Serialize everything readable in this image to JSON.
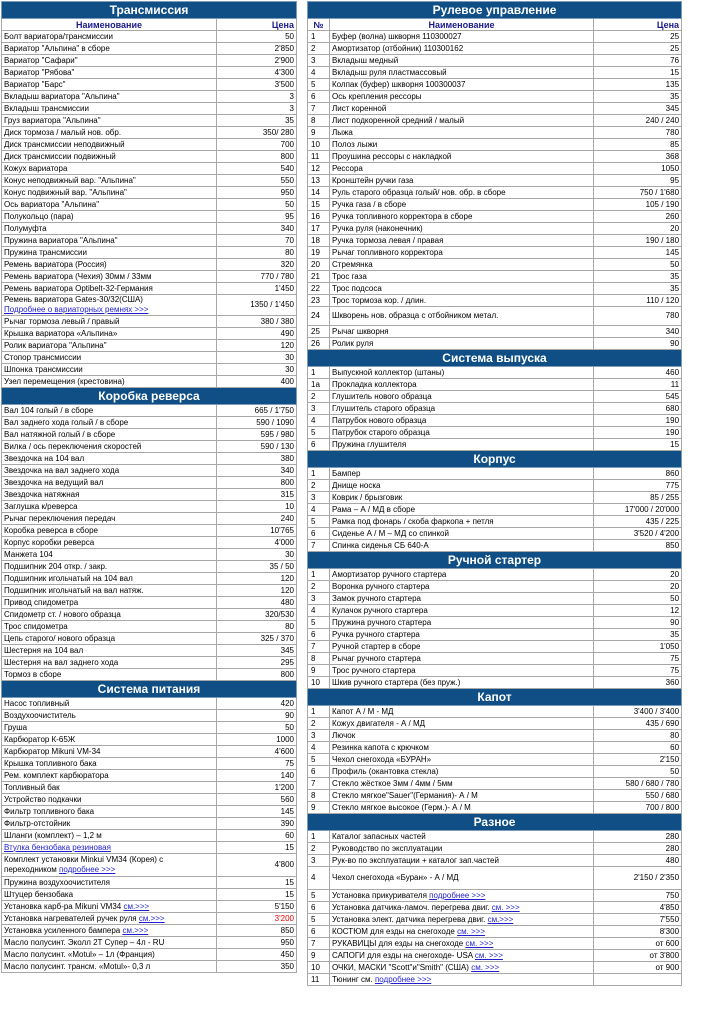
{
  "left_sections": [
    {
      "title": "Трансмиссия",
      "header": {
        "name": "Наименование",
        "price": "Цена"
      },
      "rows": [
        {
          "name": "Болт вариатора/трансмиссии",
          "price": "50"
        },
        {
          "name": "Вариатор \"Альпина\" в сборе",
          "price": "2'850"
        },
        {
          "name": "Вариатор \"Сафари\"",
          "price": "2'900"
        },
        {
          "name": "Вариатор \"Рябова\"",
          "price": "4'300"
        },
        {
          "name": "Вариатор   \"Барс\"",
          "price": "3'500"
        },
        {
          "name": "Вкладыш вариатора \"Альпина\"",
          "price": "3"
        },
        {
          "name": "Вкладыш трансмиссии",
          "price": "3"
        },
        {
          "name": "Груз вариатора \"Альпина\"",
          "price": "35"
        },
        {
          "name": "Диск тормоза / малый нов. обр.",
          "price": "350/ 280"
        },
        {
          "name": "Диск трансмиссии неподвижный",
          "price": "700"
        },
        {
          "name": "Диск трансмиссии подвижный",
          "price": "800"
        },
        {
          "name": "Кожух вариатора",
          "price": "540"
        },
        {
          "name": "Конус неподвижный вар. \"Альпина\"",
          "price": "550"
        },
        {
          "name": "Конус подвижный вар. \"Альпина\"",
          "price": "950"
        },
        {
          "name": "Ось вариатора \"Альпина\"",
          "price": "50"
        },
        {
          "name": "Полукольцо (пара)",
          "price": "95"
        },
        {
          "name": "Полумуфта",
          "price": "340"
        },
        {
          "name": "Пружина вариатора \"Альпина\"",
          "price": "70"
        },
        {
          "name": "Пружина трансмиссии",
          "price": "80"
        },
        {
          "name": "Ремень вариатора (Россия)",
          "price": "320"
        },
        {
          "name": "Ремень вариатора (Чехия) 30мм / 33мм",
          "price": "770 / 780"
        },
        {
          "name": "Ремень вариатора Optibelt-32-Германия",
          "price": "1'450"
        },
        {
          "name": "Ремень вариатора Gates-30/32(США)",
          "link": "Подробнее о вариаторных ремнях >>>",
          "price": "1350 / 1'450",
          "tall": true
        },
        {
          "name": "Рычаг тормоза  левый / правый",
          "price": "380 / 380"
        },
        {
          "name": "Крышка вариатора  «Альпина»",
          "price": "490"
        },
        {
          "name": "Ролик вариатора \"Альпина\"",
          "price": "120"
        },
        {
          "name": "Стопор трансмиссии",
          "price": "30"
        },
        {
          "name": "Шпонка трансмиссии",
          "price": "30"
        },
        {
          "name": "Узел перемещения (крестовина)",
          "price": "400"
        }
      ]
    },
    {
      "title": "Коробка реверса",
      "rows": [
        {
          "name": "Вал 104 голый / в сборе",
          "price": "665 / 1'750"
        },
        {
          "name": "Вал заднего хода голый / в сборе",
          "price": "590 / 1090"
        },
        {
          "name": "Вал натяжной голый / в сборе",
          "price": "595 / 980"
        },
        {
          "name": "Вилка / ось переключения скоростей",
          "price": "590 / 130"
        },
        {
          "name": "Звездочка на 104 вал",
          "price": "380"
        },
        {
          "name": "Звездочка на вал заднего хода",
          "price": "340"
        },
        {
          "name": "Звездочка на ведущий вал",
          "price": "800"
        },
        {
          "name": "Звездочка натяжная",
          "price": "315"
        },
        {
          "name": "Заглушка к/реверса",
          "price": "10"
        },
        {
          "name": "Рычаг переключения передач",
          "price": "240"
        },
        {
          "name": "Коробка реверса в сборе",
          "price": "10'765"
        },
        {
          "name": "Корпус коробки реверса",
          "price": "4'000"
        },
        {
          "name": "Манжета 104",
          "price": "30"
        },
        {
          "name": "Подшипник 204 откр. / закр.",
          "price": "35 / 50"
        },
        {
          "name": "Подшипник игольчатый на 104 вал",
          "price": "120"
        },
        {
          "name": "Подшипник игольчатый на вал натяж.",
          "price": "120"
        },
        {
          "name": "Привод спидометра",
          "price": "480"
        },
        {
          "name": "Спидометр ст. / нового образца",
          "price": "320/530"
        },
        {
          "name": "Трос спидометра",
          "price": "80"
        },
        {
          "name": "Цепь старого/ нового образца",
          "price": "325 / 370"
        },
        {
          "name": "Шестерня на 104 вал",
          "price": "345"
        },
        {
          "name": "Шестерня на вал заднего хода",
          "price": "295"
        },
        {
          "name": "Тормоз в сборе",
          "price": "800"
        }
      ]
    },
    {
      "title": "Система питания",
      "rows": [
        {
          "name": "Насос топливный",
          "price": "420"
        },
        {
          "name": "Воздухоочиститель",
          "price": "90"
        },
        {
          "name": "Груша",
          "price": "50"
        },
        {
          "name": "Карбюратор К-65Ж",
          "price": "1000"
        },
        {
          "name": "Карбюратор Mikuni VM-34",
          "price": "4'600"
        },
        {
          "name": "Крышка топливного бака",
          "price": "75"
        },
        {
          "name": "Рем. комплект карбюратора",
          "price": "140"
        },
        {
          "name": "Топливный бак",
          "price": "1'200"
        },
        {
          "name": "Устройство подкачки",
          "price": "560"
        },
        {
          "name": "Фильтр топливного бака",
          "price": "145"
        },
        {
          "name": "Фильтр-отстойник",
          "price": "390"
        },
        {
          "name": "Шланги (комплект) – 1,2 м",
          "price": "60"
        },
        {
          "name": "",
          "link": "Втулка бензобака резиновая",
          "price": "15"
        },
        {
          "name": "Комплект установки Minkui VM34 (Корея) с переходником",
          "link": "подробнее >>>",
          "price": "4'800",
          "big": true
        },
        {
          "name": "Пружина воздухоочистителя",
          "price": "15"
        },
        {
          "name": "Штуцер бензобака",
          "price": "15"
        },
        {
          "name": "Установка карб-ра  Mikuni VM34",
          "link": "см.>>>",
          "price": "5'150"
        },
        {
          "name": "Установка нагревателей ручек руля",
          "link": "см.>>>",
          "price": "3'200",
          "red": true
        },
        {
          "name": "Установка усиленного бампера",
          "link": "см.>>>",
          "price": "850"
        },
        {
          "name": "Масло полусинт. Эколл 2Т Супер – 4л - RU",
          "price": "950"
        },
        {
          "name": "Масло полусинт. «Motul» – 1л (Франция)",
          "price": "450"
        },
        {
          "name": "Масло полусинт. трансм. «Motul»- 0,3 л",
          "price": "350"
        }
      ]
    }
  ],
  "right_sections": [
    {
      "title": "Рулевое управление",
      "header": {
        "num": "№",
        "name": "Наименование",
        "price": "Цена"
      },
      "rows": [
        {
          "num": "1",
          "name": "Буфер (волна) шкворня 110300027",
          "price": "25"
        },
        {
          "num": "2",
          "name": "Амортизатор (отбойник) 110300162",
          "price": "25"
        },
        {
          "num": "3",
          "name": "Вкладыш медный",
          "price": "76"
        },
        {
          "num": "4",
          "name": "Вкладыш руля пластмассовый",
          "price": "15"
        },
        {
          "num": "5",
          "name": "Колпак (буфер) шкворня 100300037",
          "price": "135"
        },
        {
          "num": "6",
          "name": "Ось крепления рессоры",
          "price": "35"
        },
        {
          "num": "7",
          "name": "Лист коренной",
          "price": "345"
        },
        {
          "num": "8",
          "name": "Лист подкоренной средний / малый",
          "price": "240 / 240"
        },
        {
          "num": "9",
          "name": "Лыжа",
          "price": "780"
        },
        {
          "num": "10",
          "name": "Полоз лыжи",
          "price": "85"
        },
        {
          "num": "11",
          "name": "Проушина рессоры с накладкой",
          "price": "368"
        },
        {
          "num": "12",
          "name": "Рессора",
          "price": "1050"
        },
        {
          "num": "13",
          "name": "Кронштейн ручки газа",
          "price": "95"
        },
        {
          "num": "14",
          "name": "Руль старого образца голый/ нов. обр. в сборе",
          "price": "750 / 1'680"
        },
        {
          "num": "15",
          "name": "Ручка газа / в сборе",
          "price": "105 / 190"
        },
        {
          "num": "16",
          "name": "Ручка топливного  корректора в сборе",
          "price": "260"
        },
        {
          "num": "17",
          "name": "Ручка руля (наконечник)",
          "price": "20"
        },
        {
          "num": "18",
          "name": "Ручка тормоза  левая / правая",
          "price": "190 / 180"
        },
        {
          "num": "19",
          "name": "Рычаг топливного  корректора",
          "price": "145"
        },
        {
          "num": "20",
          "name": "Стремянка",
          "price": "50"
        },
        {
          "num": "21",
          "name": "Трос газа",
          "price": "35"
        },
        {
          "num": "22",
          "name": "Трос подсоса",
          "price": "35"
        },
        {
          "num": "23",
          "name": "Трос тормоза кор. / длин.",
          "price": "110 / 120"
        },
        {
          "num": "24",
          "name": "Шкворень нов. образца с отбойником метал.",
          "price": "780",
          "tall": true
        },
        {
          "num": "25",
          "name": "Рычаг шкворня",
          "price": "340"
        },
        {
          "num": "26",
          "name": "Ролик руля",
          "price": "90"
        }
      ]
    },
    {
      "title": "Система выпуска",
      "rows": [
        {
          "num": "1",
          "name": "Выпускной коллектор (штаны)",
          "price": "460"
        },
        {
          "num": "1а",
          "name": "Прокладка коллектора",
          "price": "11"
        },
        {
          "num": "2",
          "name": "Глушитель нового образца",
          "price": "545"
        },
        {
          "num": "3",
          "name": "Глушитель старого образца",
          "price": "680"
        },
        {
          "num": "4",
          "name": "Патрубок нового образца",
          "price": "190"
        },
        {
          "num": "5",
          "name": "Патрубок старого образца",
          "price": "190"
        },
        {
          "num": "6",
          "name": "Пружина глушителя",
          "price": "15"
        }
      ]
    },
    {
      "title": "Корпус",
      "rows": [
        {
          "num": "1",
          "name": "Бампер",
          "price": "860"
        },
        {
          "num": "2",
          "name": "Днище носка",
          "price": "775"
        },
        {
          "num": "3",
          "name": "Коврик / брызговик",
          "price": "85 / 255"
        },
        {
          "num": "4",
          "name": "Рама – А / МД в сборе",
          "price": "17'000 / 20'000"
        },
        {
          "num": "5",
          "name": "Рамка под фонарь / скоба фаркопа + петля",
          "price": "435 / 225"
        },
        {
          "num": "6",
          "name": "Сиденье А / М – МД со спинкой",
          "price": "3'520 / 4'200"
        },
        {
          "num": "7",
          "name": "Спинка сиденья СБ 640-А",
          "price": "850"
        }
      ]
    },
    {
      "title": "Ручной стартер",
      "rows": [
        {
          "num": "1",
          "name": "Амортизатор ручного стартера",
          "price": "20"
        },
        {
          "num": "2",
          "name": "Воронка ручного стартера",
          "price": "20"
        },
        {
          "num": "3",
          "name": "Замок ручного стартера",
          "price": "50"
        },
        {
          "num": "4",
          "name": "Кулачок ручного стартера",
          "price": "12"
        },
        {
          "num": "5",
          "name": "Пружина ручного стартера",
          "price": "90"
        },
        {
          "num": "6",
          "name": "Ручка ручного стартера",
          "price": "35"
        },
        {
          "num": "7",
          "name": "Ручной стартер в сборе",
          "price": "1'050"
        },
        {
          "num": "8",
          "name": "Рычаг ручного стартера",
          "price": "75"
        },
        {
          "num": "9",
          "name": "Трос ручного стартера",
          "price": "75"
        },
        {
          "num": "10",
          "name": "Шкив ручного стартера (без пруж.)",
          "price": "360"
        }
      ]
    },
    {
      "title": "Капот",
      "rows": [
        {
          "num": "1",
          "name": "Капот А / М - МД",
          "price": "3'400 / 3'400"
        },
        {
          "num": "2",
          "name": "Кожух двигателя -   А / МД",
          "price": "435 / 690"
        },
        {
          "num": "3",
          "name": "Лючок",
          "price": "80"
        },
        {
          "num": "4",
          "name": "Резинка капота с крючком",
          "price": "60"
        },
        {
          "num": "5",
          "name": "Чехол снегохода «БУРАН»",
          "price": "2'150"
        },
        {
          "num": "6",
          "name": "Профиль (окантовка стекла)",
          "price": "50"
        },
        {
          "num": "7",
          "name": "Стекло жёсткое 3мм / 4мм / 5мм",
          "price": "580 / 680 / 780"
        },
        {
          "num": "8",
          "name": "Стекло мягкое\"Sauer\"(Германия)- А / М",
          "price": "550 / 680"
        },
        {
          "num": "9",
          "name": "Стекло мягкое высокое (Герм.)- А / М",
          "price": "700 / 800"
        }
      ]
    },
    {
      "title": "Разное",
      "rows": [
        {
          "num": "1",
          "name": "Каталог запасных частей",
          "price": "280"
        },
        {
          "num": "2",
          "name": "Руководство по эксплуатации",
          "price": "280"
        },
        {
          "num": "3",
          "name": "Рук-во по эксплуатации + каталог зап.частей",
          "price": "480"
        },
        {
          "num": "4",
          "name": "Чехол снегохода «Буран» - А / МД",
          "price": "2'150 / 2'350",
          "big": true
        },
        {
          "num": "5",
          "name": "Установка прикуривателя",
          "link": "подробнее >>>",
          "price": "750"
        },
        {
          "num": "6",
          "name": "Установка датчика-ламоч. перегрева двиг.",
          "link": "см. >>>",
          "price": "4'850"
        },
        {
          "num": "5",
          "name": "Установка элект. датчика перегрева двиг.",
          "link": "см.>>>",
          "price": "7'550"
        },
        {
          "num": "6",
          "name": "КОСТЮМ для езды на снегоходе",
          "link": "см. >>>",
          "price": "8'300"
        },
        {
          "num": "7",
          "name": "РУКАВИЦЫ для езды на снегоходе",
          "link": "см. >>>",
          "price": "от 600"
        },
        {
          "num": "9",
          "name": "САПОГИ для езды на снегоходе- USA",
          "link": "см. >>>",
          "price": "от 3'800"
        },
        {
          "num": "10",
          "name": "ОЧКИ, МАСКИ \"Scott\"и\"Smith\" (США)",
          "link": "см. >>>",
          "price": "от 900"
        },
        {
          "num": "11",
          "name": "Тюнинг см.",
          "link": "подробнее >>>",
          "price": ""
        }
      ]
    }
  ]
}
